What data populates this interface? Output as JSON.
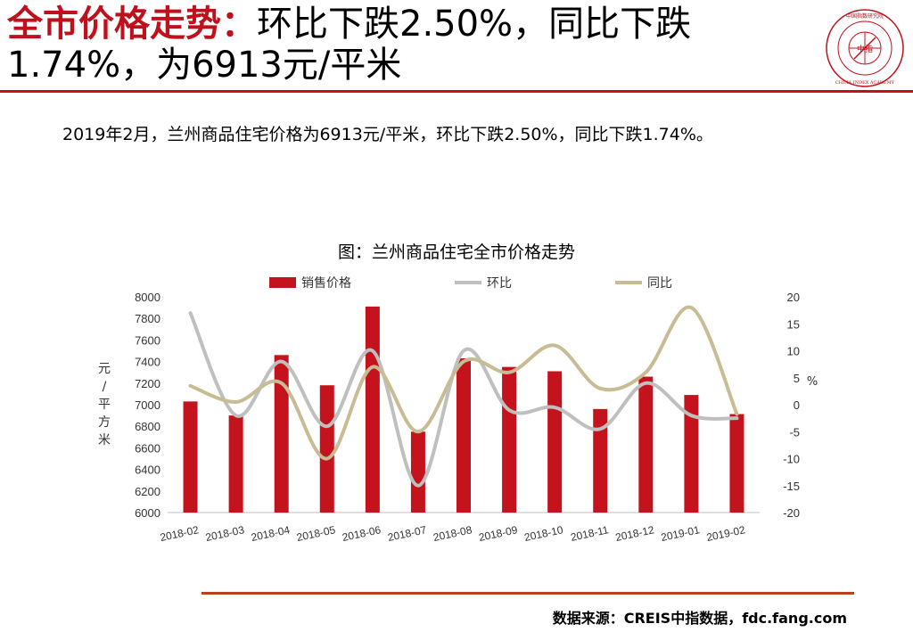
{
  "header": {
    "title_highlight": "全市价格走势：",
    "title_rest": "环比下跌2.50%，同比下跌1.74%，为6913元/平米"
  },
  "logo": {
    "center_text": "中指",
    "ring_text_top": "中国指数研究院",
    "ring_text_bottom": "CHINA INDEX ACADEMY"
  },
  "summary": "2019年2月，兰州商品住宅价格为6913元/平米，环比下跌2.50%，同比下跌1.74%。",
  "source": "数据来源：CREIS中指数据，fdc.fang.com",
  "colors": {
    "brand_red": "#c0101c",
    "bar": "#c4131d",
    "mom_line": "#bfbfbf",
    "yoy_line": "#c8bc94",
    "bottom_rule": "#b4441a"
  },
  "chart_data": {
    "type": "bar",
    "title": "图：兰州商品住宅全市价格走势",
    "categories": [
      "2018-02",
      "2018-03",
      "2018-04",
      "2018-05",
      "2018-06",
      "2018-07",
      "2018-08",
      "2018-09",
      "2018-10",
      "2018-11",
      "2018-12",
      "2019-01",
      "2019-02"
    ],
    "series": [
      {
        "name": "销售价格",
        "type": "bar",
        "axis": "left",
        "values": [
          7030,
          6900,
          7460,
          7180,
          7910,
          6750,
          7430,
          7350,
          7310,
          6960,
          7260,
          7090,
          6913
        ]
      },
      {
        "name": "环比",
        "type": "line",
        "axis": "right",
        "values": [
          17,
          -2,
          8,
          -4,
          10,
          -15,
          10,
          -1,
          -0.5,
          -4.5,
          4,
          -2,
          -2.5
        ]
      },
      {
        "name": "同比",
        "type": "line",
        "axis": "right",
        "values": [
          3.5,
          0.5,
          4,
          -10,
          7,
          -5,
          8,
          6,
          11,
          3,
          6,
          18,
          -1.74
        ]
      }
    ],
    "left_axis": {
      "label": "元/平方米",
      "ylim": [
        6000,
        8000
      ],
      "ticks": [
        6000,
        6200,
        6400,
        6600,
        6800,
        7000,
        7200,
        7400,
        7600,
        7800,
        8000
      ]
    },
    "right_axis": {
      "label": "%",
      "ylim": [
        -20,
        20
      ],
      "ticks": [
        -20,
        -15,
        -10,
        -5,
        0,
        5,
        10,
        15,
        20
      ]
    },
    "legend_position": "top",
    "grid": false
  }
}
